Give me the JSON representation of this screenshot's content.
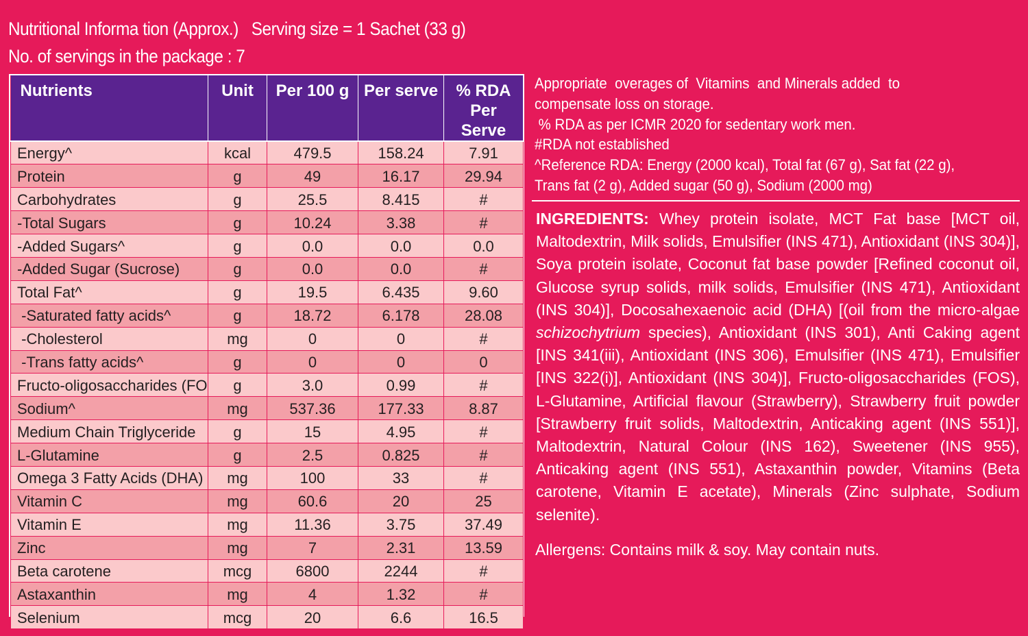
{
  "header": {
    "line1": "Nutritional Informa tion (Approx.)   Serving size = 1 Sachet (33 g)",
    "line2": "No. of servings in the package : 7"
  },
  "table": {
    "headers": [
      "Nutrients",
      "Unit",
      "Per 100 g",
      "Per serve",
      "% RDA Per Serve"
    ],
    "rows": [
      [
        "Energy^",
        "kcal",
        "479.5",
        "158.24",
        "7.91"
      ],
      [
        "Protein",
        "g",
        "49",
        "16.17",
        "29.94"
      ],
      [
        "Carbohydrates",
        "g",
        "25.5",
        "8.415",
        "#"
      ],
      [
        "-Total Sugars",
        "g",
        "10.24",
        "3.38",
        "#"
      ],
      [
        "-Added Sugars^",
        "g",
        "0.0",
        "0.0",
        "0.0"
      ],
      [
        "-Added Sugar (Sucrose)",
        "g",
        "0.0",
        "0.0",
        "#"
      ],
      [
        "Total Fat^",
        "g",
        "19.5",
        "6.435",
        "9.60"
      ],
      [
        " -Saturated fatty acids^",
        "g",
        "18.72",
        "6.178",
        "28.08"
      ],
      [
        " -Cholesterol",
        "mg",
        "0",
        "0",
        "#"
      ],
      [
        " -Trans fatty acids^",
        "g",
        "0",
        "0",
        "0"
      ],
      [
        "Fructo-oligosaccharides (FOS)",
        "g",
        "3.0",
        "0.99",
        "#"
      ],
      [
        "Sodium^",
        "mg",
        "537.36",
        "177.33",
        "8.87"
      ],
      [
        "Medium Chain Triglyceride",
        "g",
        "15",
        "4.95",
        "#"
      ],
      [
        "L-Glutamine",
        "g",
        "2.5",
        "0.825",
        "#"
      ],
      [
        "Omega 3 Fatty Acids (DHA)",
        "mg",
        "100",
        "33",
        "#"
      ],
      [
        "Vitamin C",
        "mg",
        "60.6",
        "20",
        "25"
      ],
      [
        "Vitamin E",
        "mg",
        "11.36",
        "3.75",
        "37.49"
      ],
      [
        "Zinc",
        "mg",
        "7",
        "2.31",
        "13.59"
      ],
      [
        "Beta carotene",
        "mcg",
        "6800",
        "2244",
        "#"
      ],
      [
        "Astaxanthin",
        "mg",
        "4",
        "1.32",
        "#"
      ],
      [
        "Selenium",
        "mcg",
        "20",
        "6.6",
        "16.5"
      ]
    ]
  },
  "notes": {
    "line1": "Appropriate  overages of  Vitamins  and Minerals added  to",
    "line2": "compensate loss on storage.",
    "line3": " % RDA as per ICMR 2020 for sedentary work men.",
    "line4": "#RDA not established",
    "line5": "^Reference RDA: Energy (2000 kcal), Total fat (67 g), Sat fat (22 g),",
    "line6": "Trans fat (2 g), Added sugar (50 g), Sodium (2000 mg)"
  },
  "ingredients": {
    "label": "INGREDIENTS:",
    "part1": " Whey protein isolate, MCT Fat base [MCT oil, Maltodextrin, Milk solids, Emulsifier (INS 471), Antioxidant (INS 304)], Soya protein isolate, Coconut fat base powder [Refined coconut oil, Glucose syrup solids, milk solids, Emulsifier (INS 471), Antioxidant (INS 304)], Docosahexaenoic acid (DHA) [(oil from the micro-algae ",
    "italic": "schizochytrium",
    "part2": " species), Antioxidant (INS 301), Anti Caking agent [INS 341(iii), Antioxidant (INS 306), Emulsifier (INS 471), Emulsifier [INS 322(i)], Antioxidant (INS 304)], Fructo-oligosaccharides (FOS), L-Glutamine, Artificial flavour (Strawberry), Strawberry fruit powder [Strawberry fruit solids, Maltodextrin, Anticaking agent (INS 551)], Maltodextrin, Natural Colour (INS 162), Sweetener (INS 955), Anticaking agent (INS 551), Astaxanthin powder, Vitamins (Beta carotene, Vitamin E acetate), Minerals (Zinc sulphate, Sodium selenite)."
  },
  "allergens": "Allergens: Contains milk & soy. May contain nuts."
}
